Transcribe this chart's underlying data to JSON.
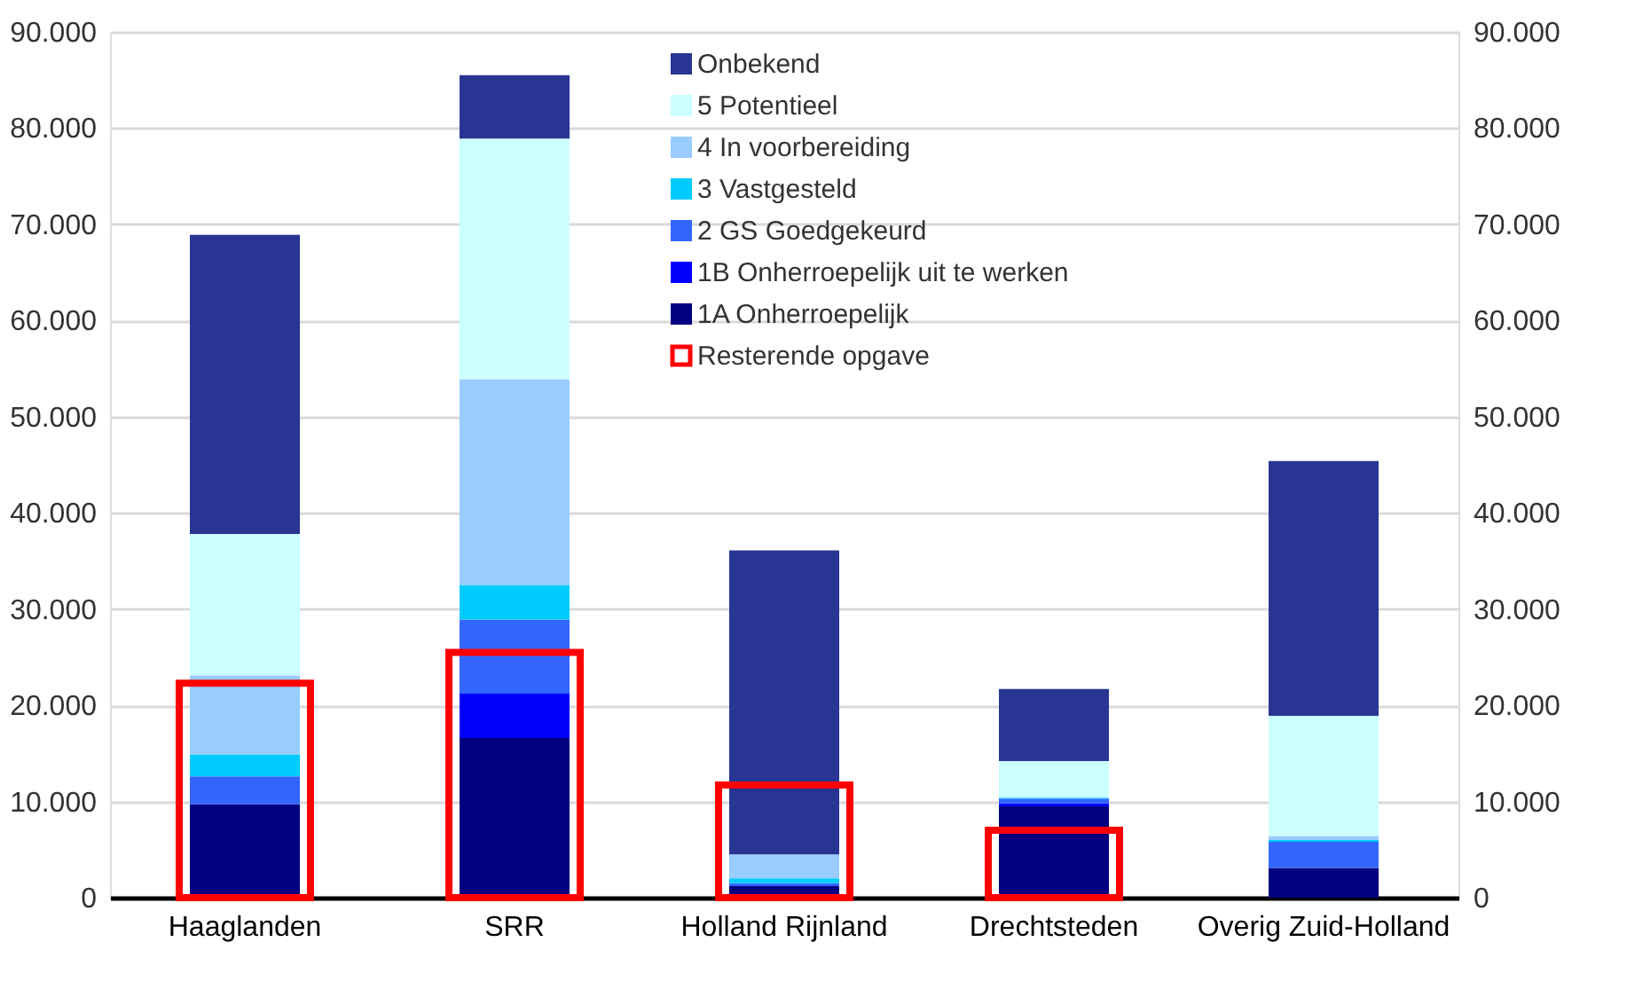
{
  "chart_data": {
    "type": "bar",
    "categories": [
      "Haaglanden",
      "SRR",
      "Holland Rijnland",
      "Drechtsteden",
      "Overig Zuid-Holland"
    ],
    "series": [
      {
        "name": "1A Onherroepelijk",
        "color": "#000080",
        "values": [
          9700,
          16600,
          1200,
          9500,
          3100
        ],
        "base": [
          0,
          0,
          0,
          0,
          0
        ]
      },
      {
        "name": "1B Onherroepelijk uit te werken",
        "color": "#0000ff",
        "values": [
          null,
          4600,
          null,
          300,
          null
        ],
        "base": [
          null,
          16600,
          null,
          9500,
          null
        ]
      },
      {
        "name": "2 GS Goedgekeurd",
        "color": "#3366ff",
        "values": [
          2900,
          7700,
          300,
          500,
          2700
        ],
        "base": [
          9700,
          21200,
          1200,
          9800,
          3100
        ]
      },
      {
        "name": "3 Vastgesteld",
        "color": "#00ccff",
        "values": [
          2300,
          3600,
          500,
          100,
          200
        ],
        "base": [
          12600,
          28900,
          1500,
          10300,
          5800
        ]
      },
      {
        "name": "4 In voorbereiding",
        "color": "#99ccff",
        "values": [
          8200,
          21400,
          2500,
          null,
          400
        ],
        "base": [
          14900,
          32500,
          2000,
          null,
          6000
        ]
      },
      {
        "name": "5 Potentieel",
        "color": "#ccffff",
        "values": [
          14700,
          25000,
          null,
          3800,
          12500
        ],
        "base": [
          23100,
          53900,
          null,
          10400,
          6400
        ]
      },
      {
        "name": "Onbekend",
        "color": "#283593",
        "values": [
          31100,
          6600,
          31600,
          7500,
          26500
        ],
        "base": [
          37800,
          78900,
          4500,
          14200,
          18900
        ]
      },
      {
        "name": "Resterende opgave",
        "color": "#ff0000",
        "values": [
          22300,
          25500,
          11700,
          7000,
          null
        ]
      }
    ],
    "ylim": [
      0,
      90000
    ],
    "yticks": [
      {
        "value": 0,
        "label": "0"
      },
      {
        "value": 10000,
        "label": "10.000"
      },
      {
        "value": 20000,
        "label": "20.000"
      },
      {
        "value": 30000,
        "label": "30.000"
      },
      {
        "value": 40000,
        "label": "40.000"
      },
      {
        "value": 50000,
        "label": "50.000"
      },
      {
        "value": 60000,
        "label": "60.000"
      },
      {
        "value": 70000,
        "label": "70.000"
      },
      {
        "value": 80000,
        "label": "80.000"
      },
      {
        "value": 90000,
        "label": "90.000"
      }
    ],
    "y2lim": [
      0,
      90000
    ],
    "y2ticks": [
      {
        "value": 0,
        "label": "0"
      },
      {
        "value": 10000,
        "label": "10.000"
      },
      {
        "value": 20000,
        "label": "20.000"
      },
      {
        "value": 30000,
        "label": "30.000"
      },
      {
        "value": 40000,
        "label": "40.000"
      },
      {
        "value": 50000,
        "label": "50.000"
      },
      {
        "value": 60000,
        "label": "60.000"
      },
      {
        "value": 70000,
        "label": "70.000"
      },
      {
        "value": 80000,
        "label": "80.000"
      },
      {
        "value": 90000,
        "label": "90.000"
      }
    ],
    "grid": "y",
    "legend": "top"
  }
}
